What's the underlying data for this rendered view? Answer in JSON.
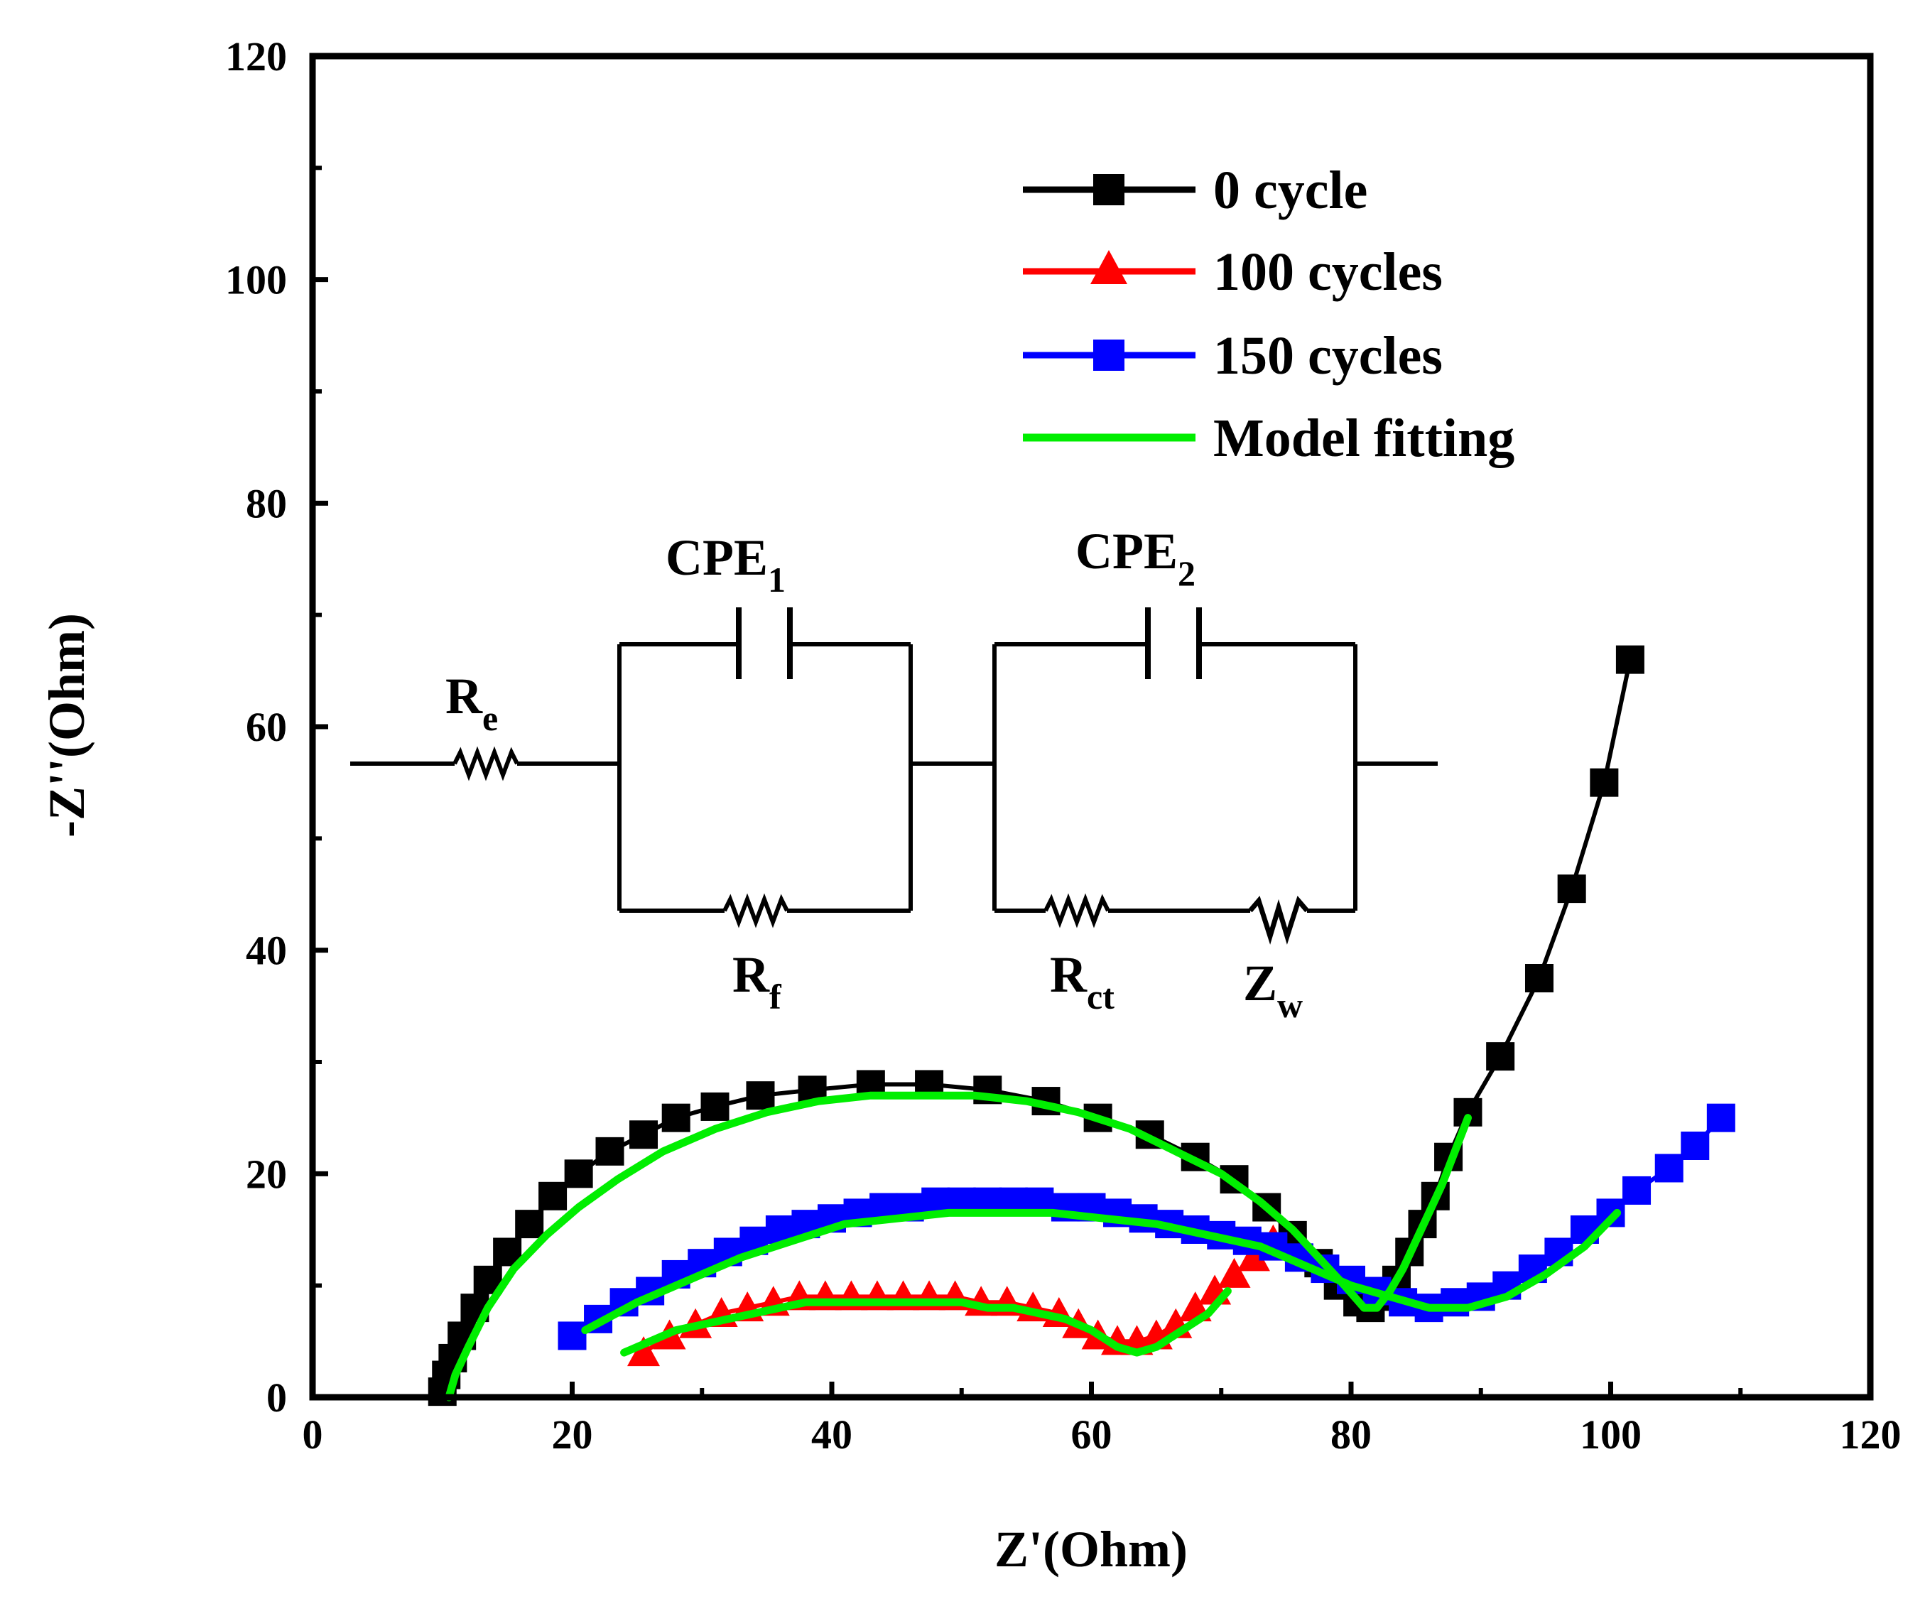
{
  "chart_data": {
    "type": "scatter",
    "xlabel": "Z'(Ohm)",
    "ylabel": "-Z''(Ohm)",
    "xlim": [
      0,
      120
    ],
    "ylim": [
      0,
      120
    ],
    "xticks": [
      "0",
      "20",
      "40",
      "60",
      "80",
      "100",
      "120"
    ],
    "yticks": [
      "0",
      "20",
      "40",
      "60",
      "80",
      "100",
      "120"
    ],
    "grid": false,
    "legend_position": "top-right",
    "series": [
      {
        "name": "0 cycle",
        "color": "#000000",
        "marker": "square",
        "x": [
          10,
          10.3,
          10.8,
          11.5,
          12.5,
          13.5,
          15,
          16.7,
          18.5,
          20.5,
          22.9,
          25.5,
          28,
          31,
          34.5,
          38.5,
          43,
          47.5,
          52,
          56.5,
          60.5,
          64.5,
          68,
          71,
          73.5,
          75.5,
          77.5,
          79,
          80.5,
          81.5,
          82.5,
          83.5,
          84.5,
          85.5,
          86.5,
          87.5,
          89,
          91.5,
          94.5,
          97,
          99.5,
          101.5
        ],
        "y": [
          0.5,
          2,
          3.5,
          5.5,
          8,
          10.5,
          13,
          15.5,
          18,
          20,
          22,
          23.5,
          25,
          26,
          27,
          27.5,
          28,
          28,
          27.5,
          26.5,
          25,
          23.5,
          21.5,
          19.5,
          17,
          14.5,
          12,
          10,
          8.5,
          8,
          9,
          10.5,
          13,
          15.5,
          18,
          21.5,
          25.5,
          30.5,
          37.5,
          45.5,
          55,
          66
        ]
      },
      {
        "name": "100 cycles",
        "color": "#ff0000",
        "marker": "triangle",
        "x": [
          25.5,
          27.5,
          29.5,
          31.5,
          33.5,
          35.5,
          37.5,
          39.5,
          41.5,
          43.5,
          45.5,
          47.5,
          49.5,
          51.5,
          53.5,
          55.5,
          57.5,
          59,
          60.5,
          62,
          63.5,
          65,
          66.5,
          68,
          69.5,
          71,
          72.5,
          74
        ],
        "y": [
          4,
          5.5,
          6.5,
          7.5,
          8,
          8.5,
          9,
          9,
          9,
          9,
          9,
          9,
          9,
          8.5,
          8.5,
          8,
          7.5,
          6.5,
          5.5,
          5,
          5,
          5.5,
          6.5,
          8,
          9.5,
          11,
          12.5,
          14
        ]
      },
      {
        "name": "150 cycles",
        "color": "#0000ff",
        "marker": "square",
        "x": [
          20,
          22,
          24,
          26,
          28,
          30,
          32,
          34,
          36,
          38,
          40,
          42,
          44,
          46,
          48,
          50,
          52,
          54,
          56,
          58,
          60,
          62,
          64,
          66,
          68,
          70,
          72,
          74,
          76,
          78,
          80,
          82,
          84,
          86,
          88,
          90,
          92,
          94,
          96,
          98,
          100,
          102,
          104.5,
          106.5,
          108.5
        ],
        "y": [
          5.5,
          7,
          8.5,
          9.5,
          11,
          12,
          13,
          14,
          15,
          15.5,
          16,
          16.5,
          17,
          17,
          17.5,
          17.5,
          17.5,
          17.5,
          17.5,
          17,
          17,
          16.5,
          16,
          15.5,
          15,
          14.5,
          14,
          13.5,
          12.5,
          11.5,
          10.5,
          9.5,
          8.5,
          8,
          8.5,
          9,
          10,
          11.5,
          13,
          15,
          16.5,
          18.5,
          20.5,
          22.5,
          25
        ]
      },
      {
        "name": "Model fitting",
        "color": "#00ee00",
        "marker": "none",
        "curves": [
          {
            "x": [
              10.5,
              11,
              12,
              13.5,
              15.5,
              18,
              20.5,
              23.5,
              27,
              31,
              35,
              39,
              43,
              47,
              51,
              55,
              59,
              63,
              66.5,
              70,
              73,
              75.5,
              77.5,
              79.5,
              81,
              82,
              83,
              84,
              85,
              86,
              87,
              88,
              89
            ],
            "y": [
              0,
              2,
              4.5,
              8,
              11.5,
              14.5,
              17,
              19.5,
              22,
              24,
              25.5,
              26.5,
              27,
              27,
              27,
              26.5,
              25.5,
              24,
              22,
              20,
              17.5,
              15,
              12.5,
              10,
              8,
              8,
              9.5,
              11.5,
              14,
              16.5,
              19,
              22,
              25
            ]
          },
          {
            "x": [
              24,
              26,
              28,
              30,
              32,
              34,
              36,
              38,
              40,
              42,
              44,
              46,
              48,
              50,
              52,
              54,
              56,
              58,
              60,
              62,
              63.5,
              65,
              67,
              69,
              70.5
            ],
            "y": [
              4,
              5,
              6,
              6.5,
              7,
              7.5,
              8,
              8.5,
              8.5,
              8.5,
              8.5,
              8.5,
              8.5,
              8.5,
              8,
              8,
              7.5,
              7,
              6,
              4.5,
              4,
              4.5,
              6,
              7.5,
              9.5
            ]
          },
          {
            "x": [
              21,
              25,
              29,
              33,
              37,
              41,
              45,
              49,
              53,
              57,
              61,
              65,
              69,
              73,
              77,
              80,
              83,
              86,
              89,
              92,
              95,
              98,
              100.5
            ],
            "y": [
              6,
              8.5,
              10.5,
              12.5,
              14,
              15.5,
              16,
              16.5,
              16.5,
              16.5,
              16,
              15.5,
              14.5,
              13.5,
              11.5,
              10,
              9,
              8,
              8,
              9,
              11,
              13.5,
              16.5
            ]
          }
        ]
      }
    ],
    "circuit": {
      "re": "R",
      "re_sub": "e",
      "cpe1": "CPE",
      "cpe1_sub": "1",
      "cpe2": "CPE",
      "cpe2_sub": "2",
      "rf": "R",
      "rf_sub": "f",
      "rct": "R",
      "rct_sub": "ct",
      "zw": "Z",
      "zw_sub": "w"
    }
  }
}
